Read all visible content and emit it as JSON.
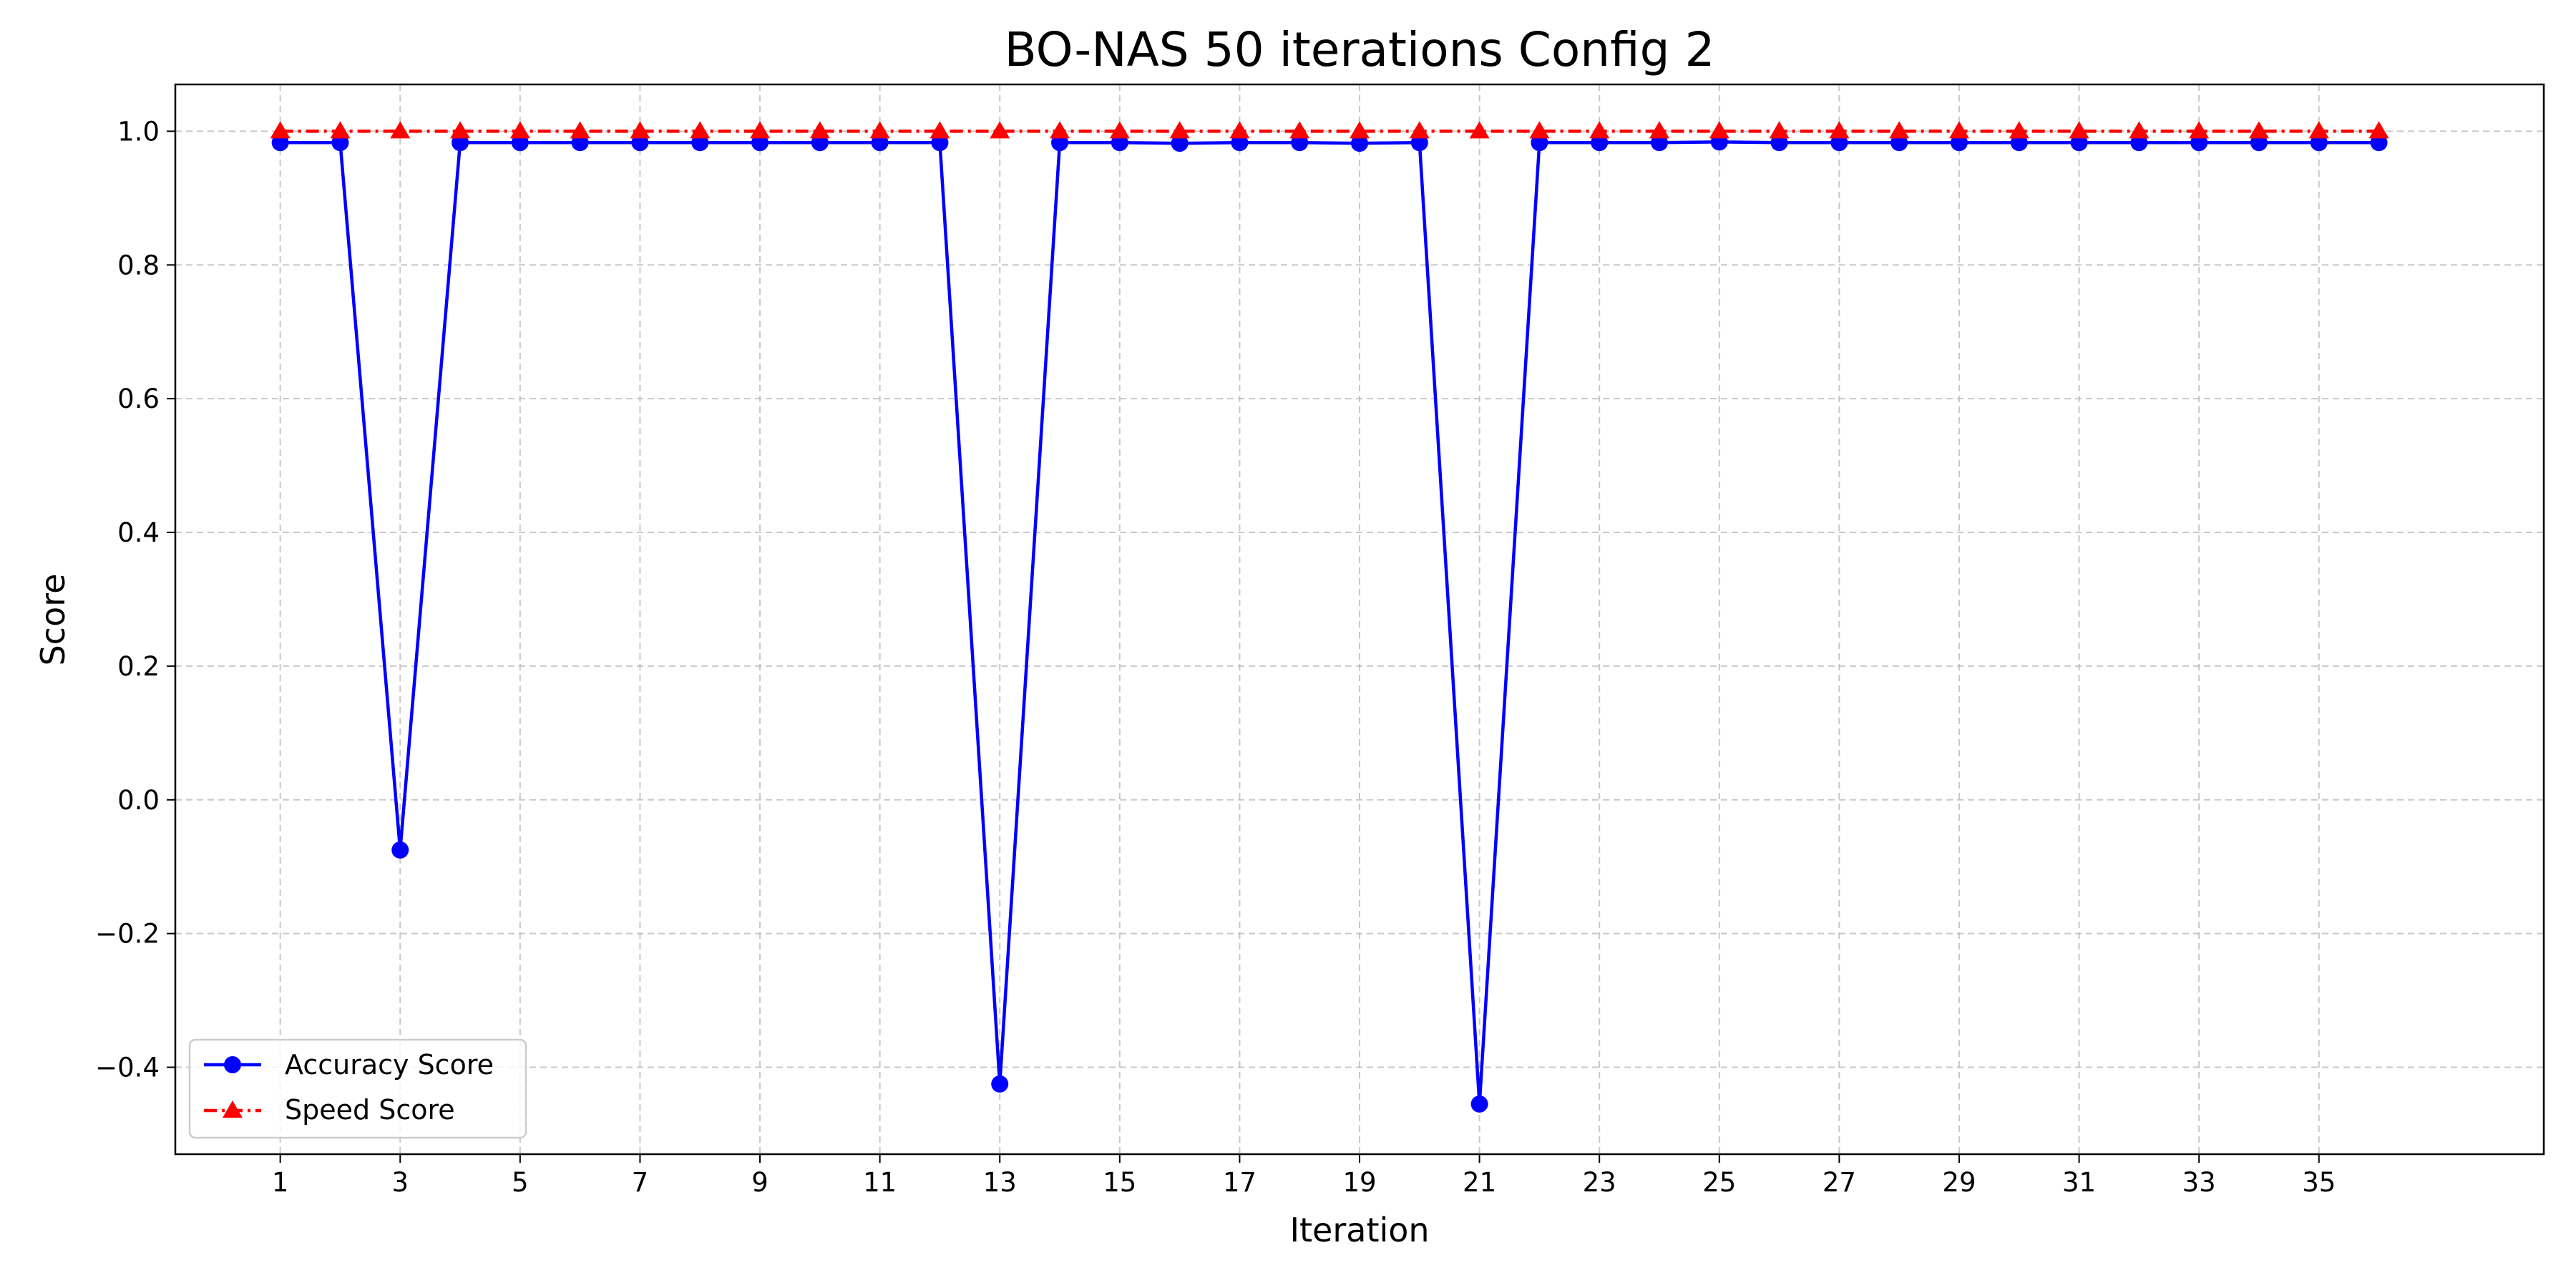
{
  "chart_data": {
    "type": "line",
    "title": "BO-NAS 50 iterations Config 2",
    "xlabel": "Iteration",
    "ylabel": "Score",
    "x": [
      1,
      2,
      3,
      4,
      5,
      6,
      7,
      8,
      9,
      10,
      11,
      12,
      13,
      14,
      15,
      16,
      17,
      18,
      19,
      20,
      21,
      22,
      23,
      24,
      25,
      26,
      27,
      28,
      29,
      30,
      31,
      32,
      33,
      34,
      35,
      36
    ],
    "xlim": [
      -0.75,
      38.75
    ],
    "ylim": [
      -0.53,
      1.07
    ],
    "xticks": [
      "1",
      "3",
      "5",
      "7",
      "9",
      "11",
      "13",
      "15",
      "17",
      "19",
      "21",
      "23",
      "25",
      "27",
      "29",
      "31",
      "33",
      "35"
    ],
    "yticks": [
      "1.0",
      "0.8",
      "0.6",
      "0.4",
      "0.2",
      "0.0",
      "−0.2",
      "−0.4"
    ],
    "grid": true,
    "legend_position": "lower-left",
    "series": [
      {
        "name": "Accuracy Score",
        "color": "#0000ff",
        "marker": "circle",
        "linestyle": "solid",
        "values": [
          0.983,
          0.983,
          -0.075,
          0.983,
          0.983,
          0.983,
          0.983,
          0.983,
          0.983,
          0.983,
          0.983,
          0.983,
          -0.425,
          0.983,
          0.983,
          0.982,
          0.983,
          0.983,
          0.982,
          0.983,
          -0.455,
          0.983,
          0.983,
          0.983,
          0.984,
          0.983,
          0.983,
          0.983,
          0.983,
          0.983,
          0.983,
          0.983,
          0.983,
          0.983,
          0.983,
          0.983
        ]
      },
      {
        "name": "Speed Score",
        "color": "#ff0000",
        "marker": "triangle",
        "linestyle": "dashdot",
        "values": [
          1,
          1,
          1,
          1,
          1,
          1,
          1,
          1,
          1,
          1,
          1,
          1,
          1,
          1,
          1,
          1,
          1,
          1,
          1,
          1,
          1,
          1,
          1,
          1,
          1,
          1,
          1,
          1,
          1,
          1,
          1,
          1,
          1,
          1,
          1,
          1
        ]
      }
    ]
  }
}
